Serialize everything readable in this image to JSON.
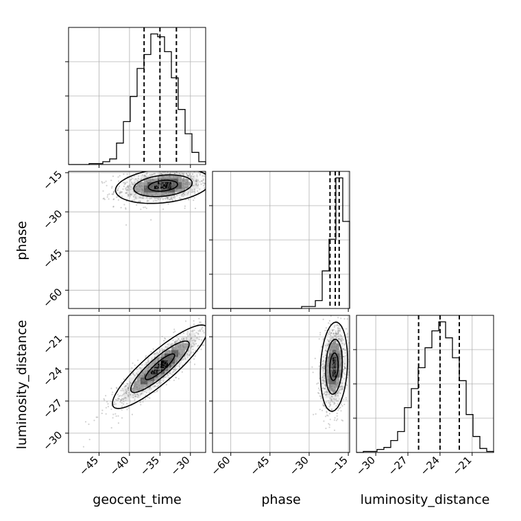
{
  "chart_data": {
    "type": "corner",
    "parameters": [
      "geocent_time",
      "phase",
      "luminosity_distance"
    ],
    "axis_labels": {
      "geocent_time": "geocent_time",
      "phase": "phase",
      "luminosity_distance": "luminosity_distance"
    },
    "ranges": {
      "geocent_time": [
        -50,
        -27.5
      ],
      "phase": [
        -67,
        -14.5
      ],
      "luminosity_distance": [
        -31.8,
        -19.0
      ]
    },
    "ticks": {
      "geocent_time": [
        -45,
        -40,
        -35,
        -30
      ],
      "phase": [
        -60,
        -45,
        -30,
        -15
      ],
      "luminosity_distance": [
        -30,
        -27,
        -24,
        -21
      ]
    },
    "grid": true,
    "quantiles": {
      "geocent_time": [
        -37.6,
        -35.0,
        -32.3
      ],
      "phase": [
        -22.0,
        -20.0,
        -18.5
      ],
      "luminosity_distance": [
        -26.0,
        -24.0,
        -22.2
      ]
    },
    "histograms": {
      "geocent_time": {
        "edges": [
          -50.0,
          -48.875,
          -47.75,
          -46.625,
          -45.5,
          -44.375,
          -43.25,
          -42.125,
          -41.0,
          -39.875,
          -38.75,
          -37.625,
          -36.5,
          -35.375,
          -34.25,
          -33.125,
          -32.0,
          -30.875,
          -29.75,
          -28.625,
          -27.5
        ],
        "counts": [
          0,
          0,
          0,
          1,
          1,
          3,
          6,
          23,
          46,
          73,
          103,
          118,
          140,
          137,
          121,
          93,
          59,
          33,
          13,
          3
        ]
      },
      "phase": {
        "edges": [
          -67.0,
          -64.375,
          -61.75,
          -59.125,
          -56.5,
          -53.875,
          -51.25,
          -48.625,
          -46.0,
          -43.375,
          -40.75,
          -38.125,
          -35.5,
          -32.875,
          -30.25,
          -27.625,
          -25.0,
          -22.375,
          -19.75,
          -17.125,
          -14.5
        ],
        "counts": [
          0,
          0,
          0,
          0,
          0,
          0,
          0,
          0,
          0,
          0,
          0,
          0,
          0,
          1,
          1,
          4,
          19,
          35,
          66,
          44
        ]
      },
      "luminosity_distance": {
        "edges": [
          -31.8,
          -31.16,
          -30.52,
          -29.88,
          -29.24,
          -28.6,
          -27.96,
          -27.32,
          -26.68,
          -26.04,
          -25.4,
          -24.76,
          -24.12,
          -23.48,
          -22.84,
          -22.2,
          -21.56,
          -20.92,
          -20.28,
          -19.64,
          -19.0
        ],
        "counts": [
          0,
          1,
          1,
          3,
          5,
          12,
          21,
          45,
          64,
          85,
          105,
          122,
          131,
          115,
          95,
          72,
          38,
          16,
          4,
          1
        ]
      }
    },
    "joint": {
      "phase_vs_geocent_time": {
        "center": [
          -34.5,
          -20.0
        ],
        "sigma": [
          3.0,
          2.6
        ],
        "rho": 0.25
      },
      "luminosity_distance_vs_geocent_time": {
        "center": [
          -35.0,
          -23.8
        ],
        "sigma": [
          3.0,
          1.5
        ],
        "rho": 0.88
      },
      "luminosity_distance_vs_phase": {
        "center": [
          -20.5,
          -23.8
        ],
        "sigma": [
          2.0,
          1.6
        ],
        "rho": 0.15
      }
    }
  }
}
